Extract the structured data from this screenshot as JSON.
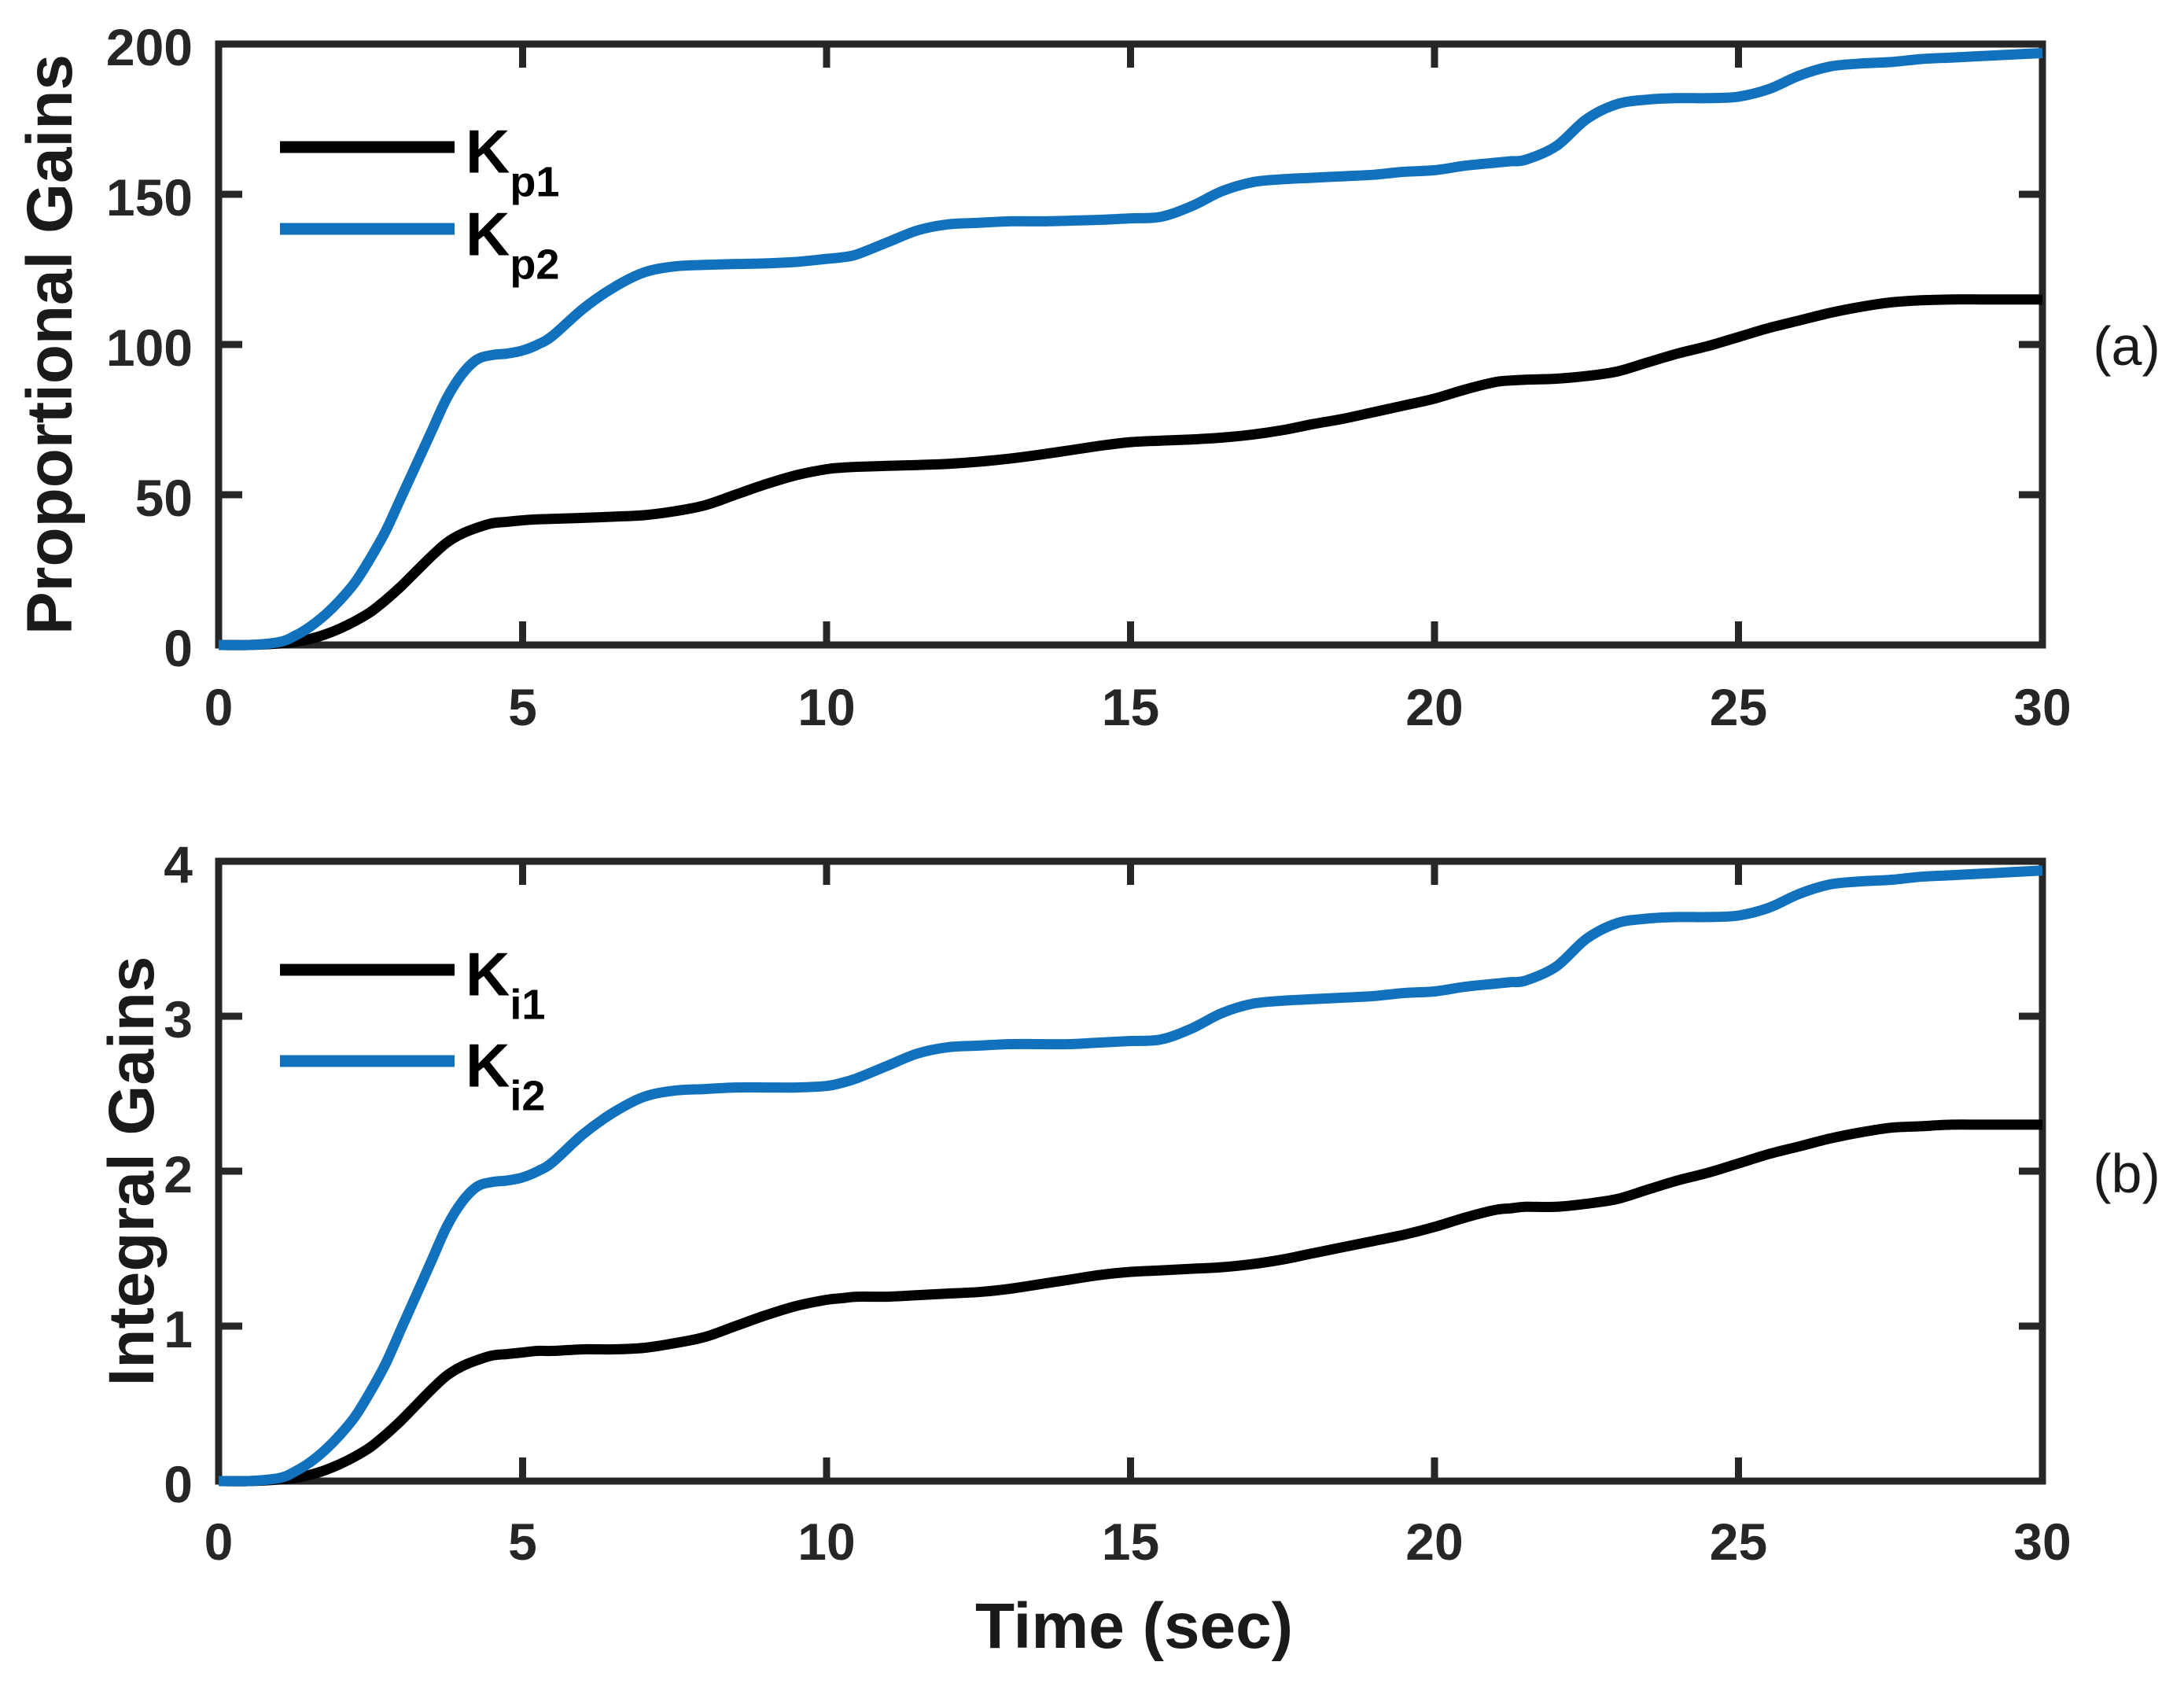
{
  "figure": {
    "xlabel": "Time (sec)",
    "background_color": "#ffffff",
    "axis_color": "#262626",
    "text_color": "#1a1a1a"
  },
  "chart_data": [
    {
      "type": "line",
      "panel_label": "(a)",
      "ylabel": "Proportional Gains",
      "xlabel": "",
      "xlim": [
        0,
        30
      ],
      "ylim": [
        0,
        200
      ],
      "x_ticks": [
        0,
        5,
        10,
        15,
        20,
        25,
        30
      ],
      "y_ticks": [
        0,
        50,
        100,
        150,
        200
      ],
      "grid": false,
      "legend_position": "upper-left-inside",
      "x": [
        0,
        0.5,
        1,
        1.25,
        1.5,
        1.75,
        2,
        2.25,
        2.5,
        2.75,
        3,
        3.25,
        3.5,
        3.75,
        4,
        4.25,
        4.5,
        4.75,
        5,
        5.25,
        5.5,
        6,
        6.5,
        7,
        7.5,
        8,
        8.5,
        9,
        9.5,
        10,
        10.25,
        10.5,
        11,
        11.5,
        12,
        12.5,
        13,
        13.5,
        14,
        14.5,
        15,
        15.5,
        16,
        16.5,
        17,
        17.5,
        18,
        18.5,
        19,
        19.5,
        20,
        20.5,
        21,
        21.25,
        21.5,
        22,
        22.5,
        23,
        23.5,
        24,
        24.5,
        25,
        25.5,
        26,
        26.5,
        27,
        27.5,
        28,
        28.5,
        29,
        29.5,
        30
      ],
      "series": [
        {
          "name": "Kp1",
          "label_main": "K",
          "label_sub": "p1",
          "color": "#000000",
          "values": [
            0,
            0,
            0.5,
            1,
            2,
            3.5,
            5.5,
            8,
            11,
            15,
            19.5,
            24.5,
            29.5,
            34,
            37,
            39,
            40.5,
            41,
            41.5,
            41.8,
            42,
            42.3,
            42.7,
            43.2,
            44.5,
            46.5,
            50,
            53.5,
            56.5,
            58.5,
            59,
            59.3,
            59.6,
            59.9,
            60.3,
            61,
            62,
            63.3,
            64.8,
            66.3,
            67.5,
            68,
            68.4,
            69,
            70,
            71.5,
            73.5,
            75.3,
            77.5,
            79.7,
            82,
            85,
            87.5,
            88,
            88.3,
            88.6,
            89.5,
            91,
            94,
            97,
            99.5,
            102.5,
            105.5,
            108,
            110.5,
            112.5,
            114,
            114.7,
            115,
            115,
            115,
            115
          ]
        },
        {
          "name": "Kp2",
          "label_main": "K",
          "label_sub": "p2",
          "color": "#1271bc",
          "values": [
            0,
            0,
            1,
            3,
            6,
            10,
            15,
            21,
            29,
            38,
            49,
            60,
            71,
            82,
            90,
            95,
            96.5,
            97,
            98,
            100,
            103,
            112,
            119,
            124,
            126,
            126.5,
            126.8,
            127,
            127.5,
            128.5,
            129,
            130,
            134,
            138,
            140,
            140.5,
            141,
            141,
            141.2,
            141.5,
            142,
            142.5,
            146,
            151,
            154,
            155,
            155.5,
            156,
            156.5,
            157.5,
            158,
            159.5,
            160.5,
            161,
            161.5,
            166,
            175,
            180,
            181.5,
            182,
            182,
            182.5,
            185,
            189.5,
            192.5,
            193.5,
            194,
            195,
            195.5,
            196,
            196.5,
            197
          ]
        }
      ]
    },
    {
      "type": "line",
      "panel_label": "(b)",
      "ylabel": "Integral Gains",
      "xlabel": "Time (sec)",
      "xlim": [
        0,
        30
      ],
      "ylim": [
        0,
        4
      ],
      "x_ticks": [
        0,
        5,
        10,
        15,
        20,
        25,
        30
      ],
      "y_ticks": [
        0,
        1,
        2,
        3,
        4
      ],
      "grid": false,
      "legend_position": "upper-left-inside",
      "x": [
        0,
        0.5,
        1,
        1.25,
        1.5,
        1.75,
        2,
        2.25,
        2.5,
        2.75,
        3,
        3.25,
        3.5,
        3.75,
        4,
        4.25,
        4.5,
        4.75,
        5,
        5.25,
        5.5,
        6,
        6.5,
        7,
        7.5,
        8,
        8.5,
        9,
        9.5,
        10,
        10.25,
        10.5,
        11,
        11.5,
        12,
        12.5,
        13,
        13.5,
        14,
        14.5,
        15,
        15.5,
        16,
        16.5,
        17,
        17.5,
        18,
        18.5,
        19,
        19.5,
        20,
        20.5,
        21,
        21.25,
        21.5,
        22,
        22.5,
        23,
        23.5,
        24,
        24.5,
        25,
        25.5,
        26,
        26.5,
        27,
        27.5,
        28,
        28.5,
        29,
        29.5,
        30
      ],
      "series": [
        {
          "name": "Ki1",
          "label_main": "K",
          "label_sub": "i1",
          "color": "#000000",
          "values": [
            0,
            0,
            0.01,
            0.02,
            0.04,
            0.07,
            0.11,
            0.16,
            0.22,
            0.3,
            0.39,
            0.49,
            0.59,
            0.68,
            0.74,
            0.78,
            0.81,
            0.82,
            0.83,
            0.84,
            0.84,
            0.85,
            0.85,
            0.86,
            0.89,
            0.93,
            1,
            1.07,
            1.13,
            1.17,
            1.18,
            1.19,
            1.19,
            1.2,
            1.21,
            1.22,
            1.24,
            1.27,
            1.3,
            1.33,
            1.35,
            1.36,
            1.37,
            1.38,
            1.4,
            1.43,
            1.47,
            1.51,
            1.55,
            1.59,
            1.64,
            1.7,
            1.75,
            1.76,
            1.77,
            1.77,
            1.79,
            1.82,
            1.88,
            1.94,
            1.99,
            2.05,
            2.11,
            2.16,
            2.21,
            2.25,
            2.28,
            2.29,
            2.3,
            2.3,
            2.3,
            2.3
          ]
        },
        {
          "name": "Ki2",
          "label_main": "K",
          "label_sub": "i2",
          "color": "#1271bc",
          "values": [
            0,
            0,
            0.02,
            0.06,
            0.12,
            0.2,
            0.3,
            0.42,
            0.58,
            0.76,
            0.98,
            1.2,
            1.42,
            1.64,
            1.8,
            1.9,
            1.93,
            1.94,
            1.96,
            2,
            2.06,
            2.24,
            2.38,
            2.48,
            2.52,
            2.53,
            2.54,
            2.54,
            2.54,
            2.55,
            2.57,
            2.6,
            2.68,
            2.76,
            2.8,
            2.81,
            2.82,
            2.82,
            2.82,
            2.83,
            2.84,
            2.85,
            2.92,
            3.02,
            3.08,
            3.1,
            3.11,
            3.12,
            3.13,
            3.15,
            3.16,
            3.19,
            3.21,
            3.22,
            3.23,
            3.32,
            3.5,
            3.6,
            3.63,
            3.64,
            3.64,
            3.65,
            3.7,
            3.79,
            3.85,
            3.87,
            3.88,
            3.9,
            3.91,
            3.92,
            3.93,
            3.94
          ]
        }
      ]
    }
  ]
}
